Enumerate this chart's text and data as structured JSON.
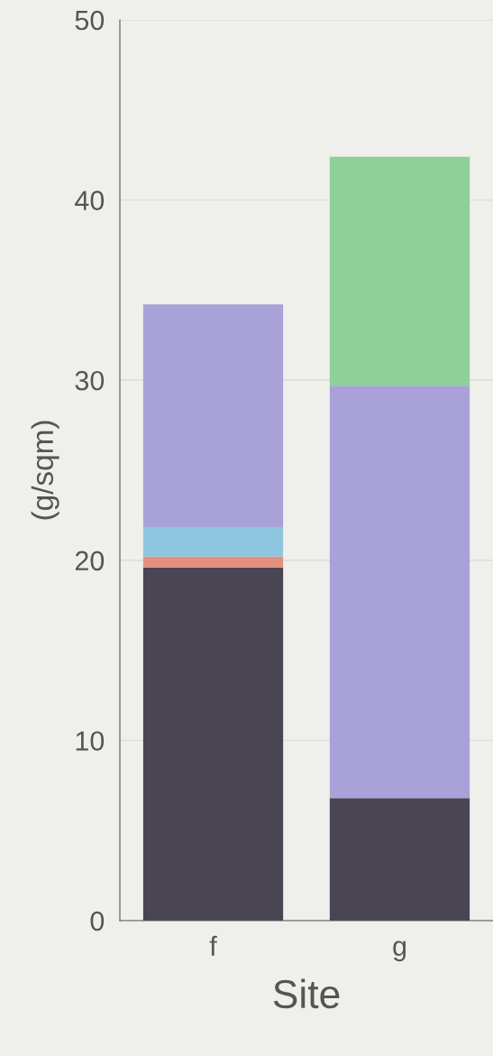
{
  "chart_data": {
    "type": "bar",
    "stacked": true,
    "xlabel": "Site",
    "ylabel": "(g/sqm)",
    "categories": [
      "f",
      "g"
    ],
    "series": [
      {
        "color": "#4a4552",
        "values": [
          19.6,
          6.8
        ]
      },
      {
        "color": "#e3907e",
        "values": [
          0.6,
          0
        ]
      },
      {
        "color": "#8fc6df",
        "values": [
          1.6,
          0
        ]
      },
      {
        "color": "#a9a2d9",
        "values": [
          12.4,
          22.9
        ]
      },
      {
        "color": "#8fcf98",
        "values": [
          0,
          12.7
        ]
      }
    ],
    "ylim": [
      0,
      50
    ],
    "yticks": [
      0,
      10,
      20,
      30,
      40,
      50
    ],
    "grid": "y",
    "legend": false
  }
}
